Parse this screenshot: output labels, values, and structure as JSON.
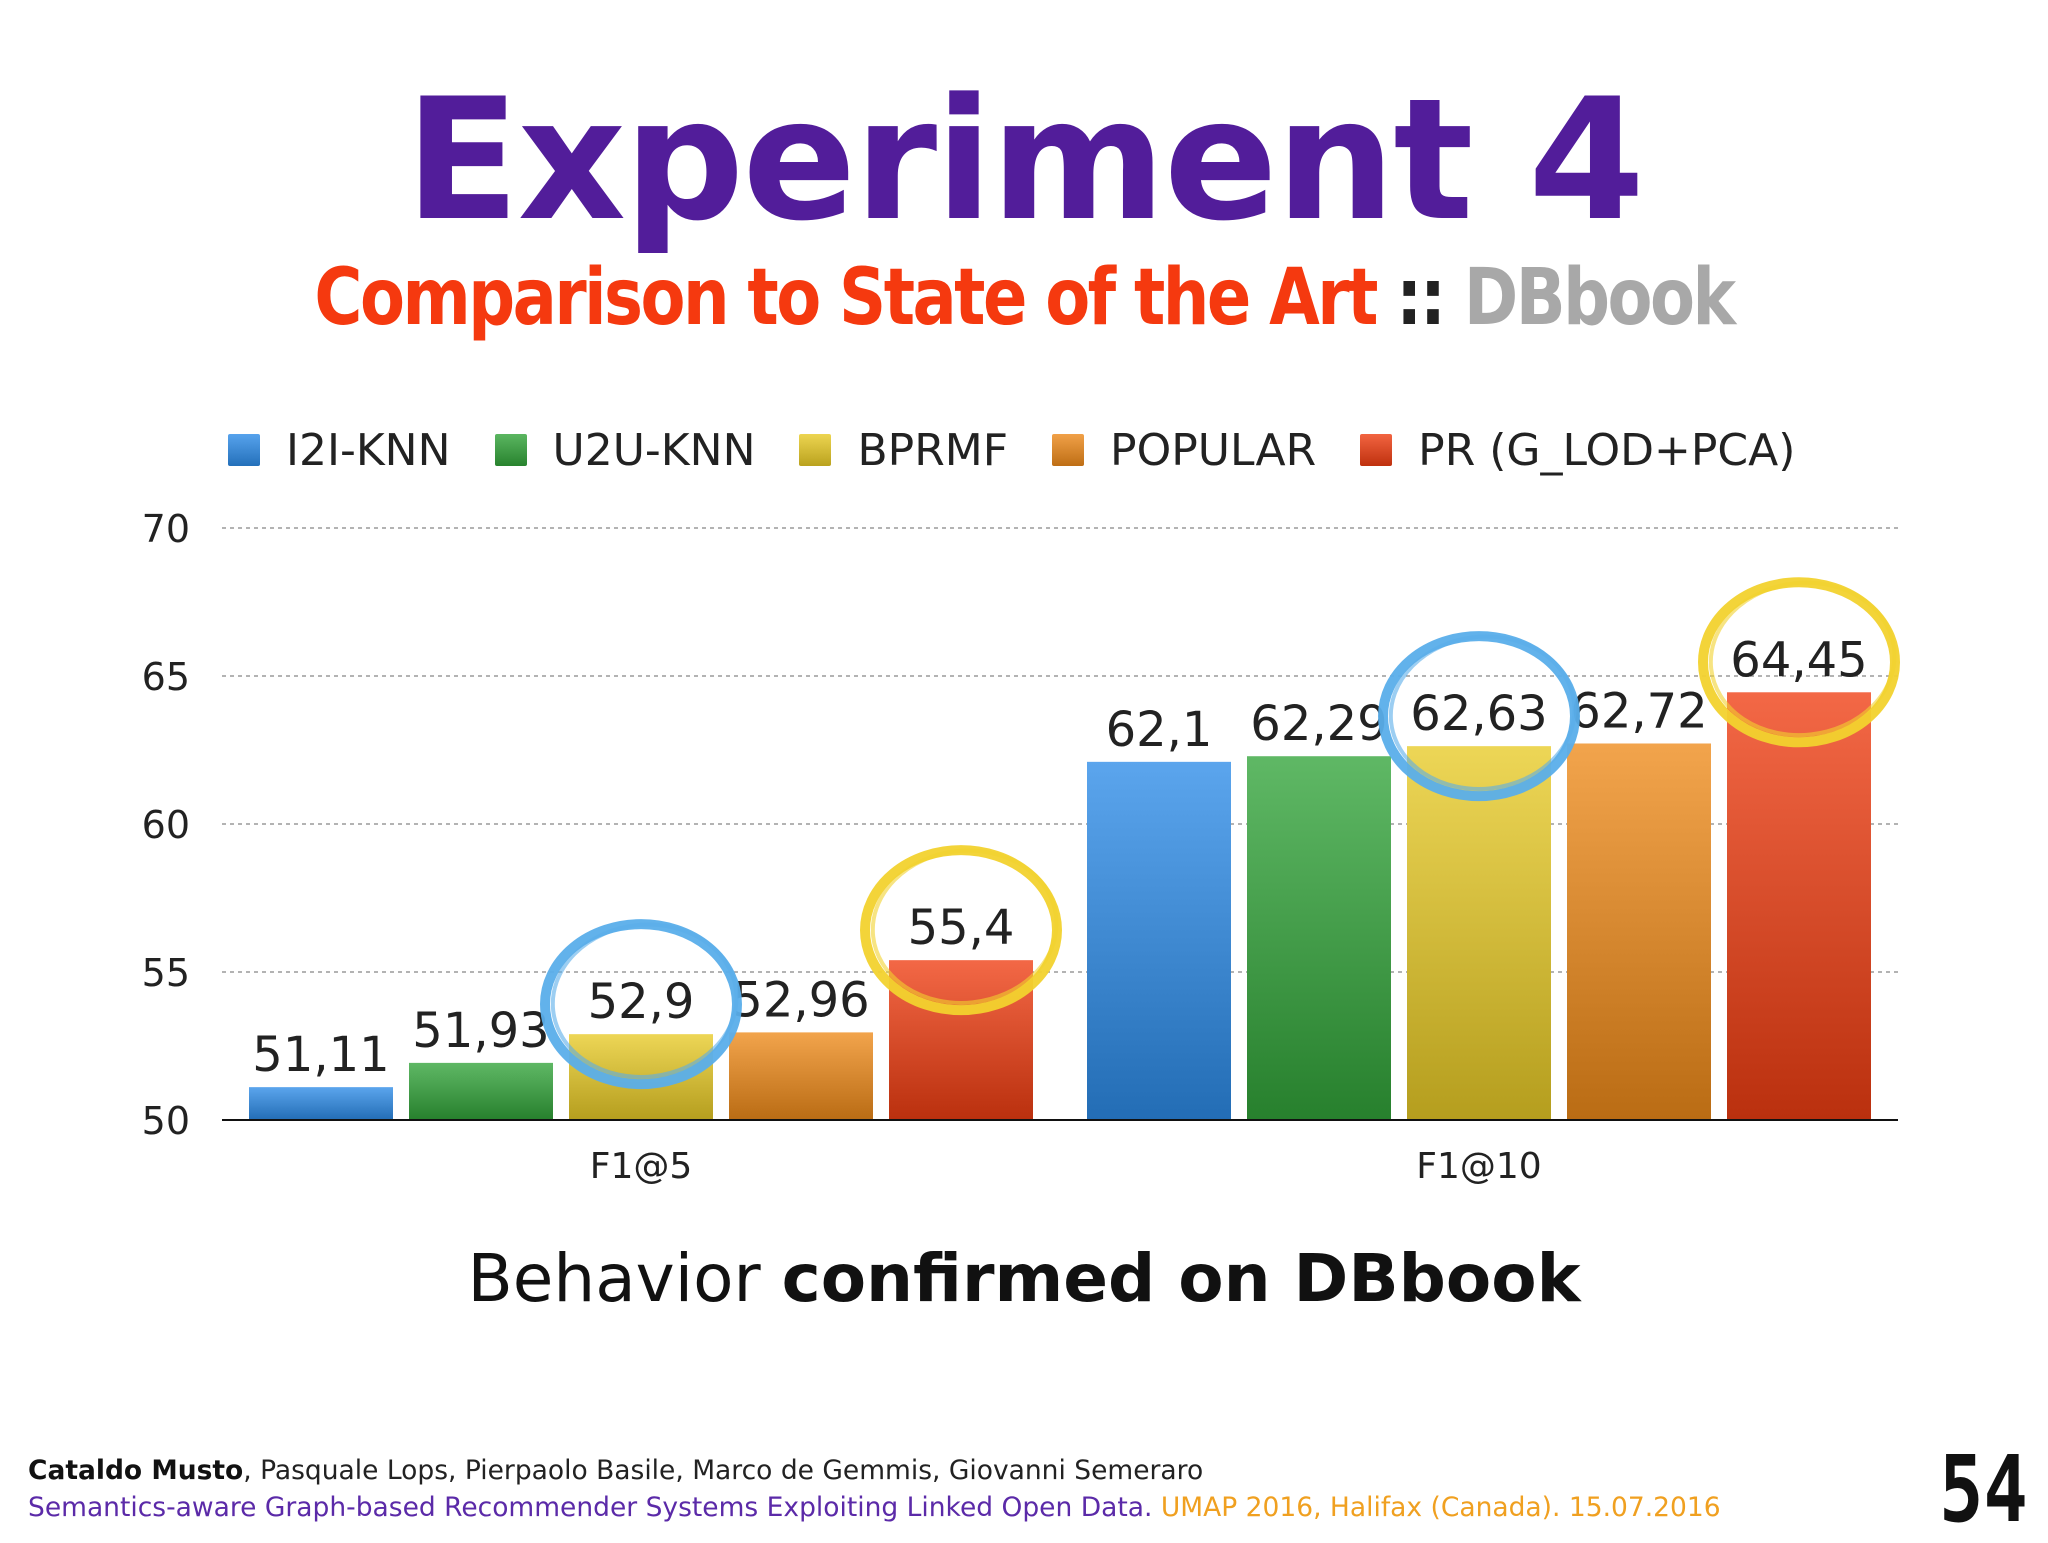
{
  "slide": {
    "title": "Experiment 4",
    "title_color": "#521d9a",
    "subtitle_main": "Comparison to State of the Art",
    "subtitle_sep": "::",
    "subtitle_dataset": "DBbook",
    "subtitle_main_color": "#f5390f",
    "subtitle_dataset_color": "#a8a8a8",
    "caption_plain": "Behavior ",
    "caption_bold": "confirmed on DBbook",
    "footer": {
      "author_bold": "Cataldo Musto",
      "authors_rest": ", Pasquale Lops, Pierpaolo Basile, Marco de Gemmis, Giovanni Semeraro",
      "paper": "Semantics-aware Graph-based Recommender Systems Exploiting Linked Open Data.",
      "venue": "UMAP 2016, Halifax (Canada). 15.07.2016"
    },
    "slide_number": "54"
  },
  "chart_data": {
    "type": "bar",
    "categories": [
      "F1@5",
      "F1@10"
    ],
    "series": [
      {
        "name": "I2I-KNN",
        "values": [
          51.11,
          62.1
        ],
        "labels": [
          "51,11",
          "62,1"
        ],
        "color": "#2d8ce8"
      },
      {
        "name": "U2U-KNN",
        "values": [
          51.93,
          62.29
        ],
        "labels": [
          "51,93",
          "62,29"
        ],
        "color": "#32a43a"
      },
      {
        "name": "BPRMF",
        "values": [
          52.9,
          62.63
        ],
        "labels": [
          "52,9",
          "62,63"
        ],
        "color": "#e8cb26"
      },
      {
        "name": "POPULAR",
        "values": [
          52.96,
          62.72
        ],
        "labels": [
          "52,96",
          "62,72"
        ],
        "color": "#ee8a1a"
      },
      {
        "name": "PR (G_LOD+PCA)",
        "values": [
          55.4,
          64.45
        ],
        "labels": [
          "55,4",
          "64,45"
        ],
        "color": "#ef3d12"
      }
    ],
    "y_ticks": [
      "50",
      "55",
      "60",
      "65",
      "70"
    ],
    "ylim": [
      50,
      70
    ],
    "grid": true,
    "legend_position": "top",
    "highlights": [
      {
        "category": "F1@5",
        "series": "BPRMF",
        "ring_color": "#5aaeea"
      },
      {
        "category": "F1@5",
        "series": "PR (G_LOD+PCA)",
        "ring_color": "#f2d22e"
      },
      {
        "category": "F1@10",
        "series": "BPRMF",
        "ring_color": "#5aaeea"
      },
      {
        "category": "F1@10",
        "series": "PR (G_LOD+PCA)",
        "ring_color": "#f2d22e"
      }
    ]
  }
}
